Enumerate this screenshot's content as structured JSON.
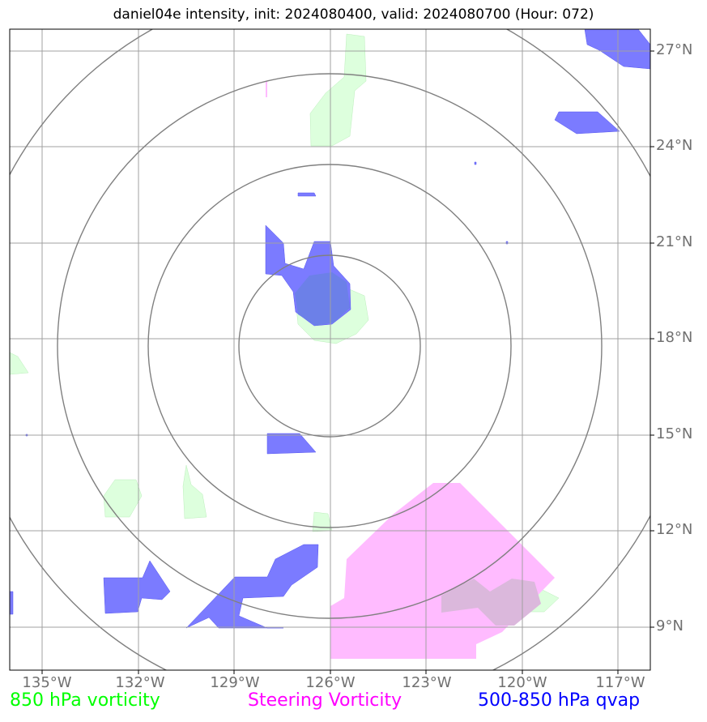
{
  "title": "daniel04e intensity, init: 2024080400, valid: 2024080700 (Hour: 072)",
  "lat_labels": [
    "27°N",
    "24°N",
    "21°N",
    "18°N",
    "15°N",
    "12°N",
    "9°N"
  ],
  "lon_labels": [
    "135°W",
    "132°W",
    "129°W",
    "126°W",
    "123°W",
    "120°W",
    "117°W"
  ],
  "legend": {
    "vorticity_850": {
      "label": "850 hPa vorticity",
      "color": "#00ff00"
    },
    "steering": {
      "label": "Steering Vorticity",
      "color": "#ff00ff"
    },
    "qvap": {
      "label": "500-850 hPa qvap",
      "color": "#0000ff"
    }
  },
  "colors": {
    "vort850_fill": "#ddffdd",
    "steering_fill": "#ffbbff",
    "qvap_fill": "#7b7bff",
    "grid": "#a0a0a0",
    "rings": "#808080"
  }
}
